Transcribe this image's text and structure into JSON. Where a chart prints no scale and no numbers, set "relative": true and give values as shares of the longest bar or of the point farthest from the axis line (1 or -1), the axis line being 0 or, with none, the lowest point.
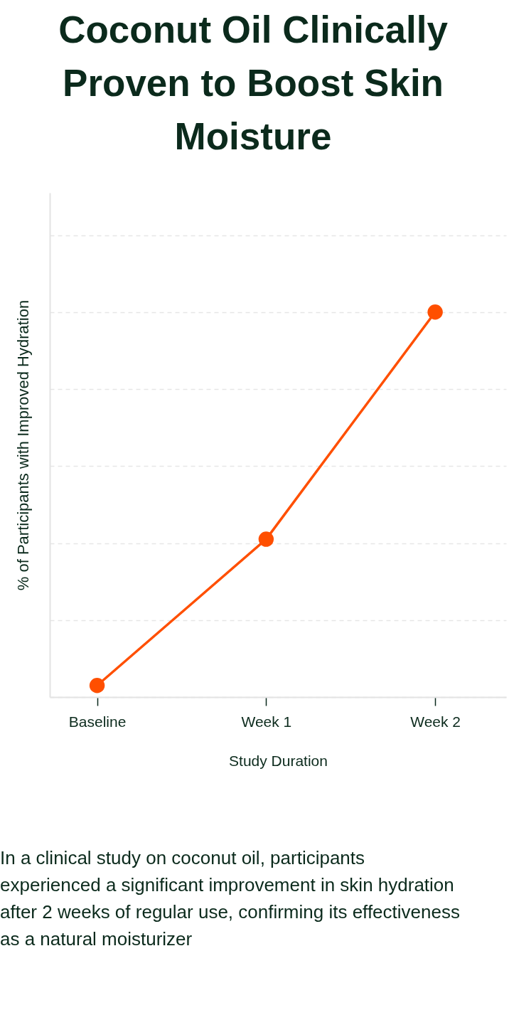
{
  "chart_data": {
    "type": "line",
    "title": "Coconut Oil Clinically Proven to Boost Skin Moisture",
    "xlabel": "Study Duration",
    "ylabel": "% of Participants with Improved Hydration",
    "categories": [
      "Baseline",
      "Week 1",
      "Week 2"
    ],
    "series": [
      {
        "color": "#ff4f00",
        "values": [
          0.03,
          0.41,
          1
        ]
      }
    ],
    "relative": true,
    "marker": "circle",
    "line_style": "solid",
    "grid": "y",
    "annotations": [
      "In a clinical study on coconut oil, participants experienced a significant improvement in skin hydration after 2 weeks of regular use, confirming its effectiveness as a natural moisturizer"
    ]
  }
}
